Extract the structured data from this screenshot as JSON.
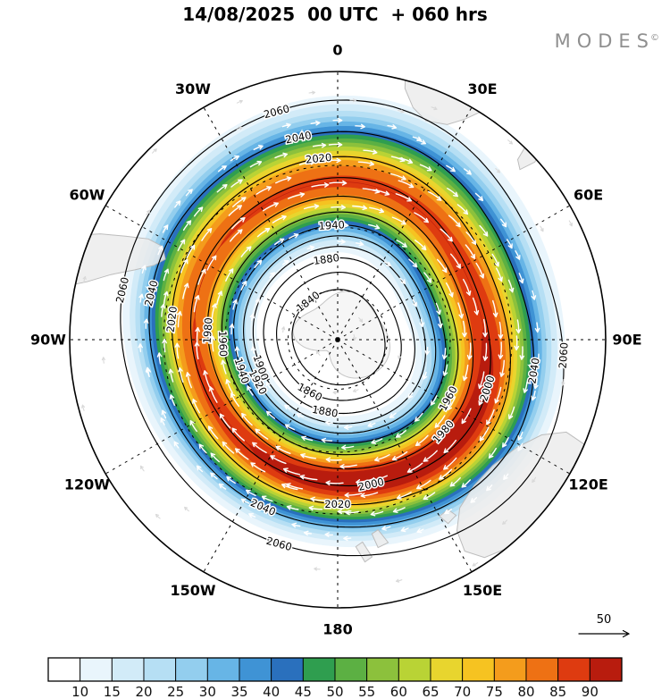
{
  "header": {
    "title": "14/08/2025  00 UTC  + 060 hrs",
    "brand": "MODES",
    "brand_mark": "©"
  },
  "chart_data": {
    "type": "heatmap",
    "subtype": "south-polar-stereographic contour map with shaded field, height contours and wind arrows",
    "title": "14/08/2025 00 UTC + 060 hrs",
    "longitude_labels": [
      "0",
      "30E",
      "60E",
      "90E",
      "120E",
      "150E",
      "180",
      "150W",
      "120W",
      "90W",
      "60W",
      "30W"
    ],
    "contour_levels": [
      1840,
      1860,
      1880,
      1900,
      1920,
      1940,
      1960,
      1980,
      2000,
      2020,
      2040,
      2060
    ],
    "colorbar": {
      "position": "bottom",
      "ticks": [
        10,
        15,
        20,
        25,
        30,
        35,
        40,
        45,
        50,
        55,
        60,
        65,
        70,
        75,
        80,
        85,
        90
      ],
      "colors": [
        "#ffffff",
        "#e9f5fc",
        "#d2ebf8",
        "#b6dff4",
        "#93ceee",
        "#67b5e6",
        "#3f93d5",
        "#2a70bd",
        "#2f9e4f",
        "#5cb043",
        "#8cc13c",
        "#b9d335",
        "#e8d52e",
        "#f6c321",
        "#f49c1c",
        "#ee7114",
        "#de3b10",
        "#b81c0e"
      ]
    },
    "reference_arrow_label": "50",
    "style_colors": {
      "contour_lines": "#000000",
      "graticule": "#000000",
      "wind_arrows": "#ffffff",
      "land": "#ececec",
      "brand": "#8f8f8f"
    },
    "grid": "dashed polar graticule, meridians every 30 degrees"
  }
}
